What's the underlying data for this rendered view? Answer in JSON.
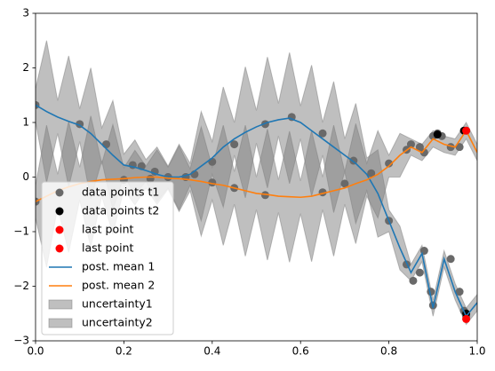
{
  "chart_data": {
    "type": "line",
    "xlim": [
      0,
      1
    ],
    "ylim": [
      -3,
      3
    ],
    "xticks": [
      {
        "value": 0,
        "label": "0.0"
      },
      0.2,
      0.4,
      0.6,
      0.8,
      {
        "value": 1,
        "label": "1.0"
      }
    ],
    "yticks": [
      {
        "value": -3,
        "label": "−3"
      },
      {
        "value": -2,
        "label": "−2"
      },
      {
        "value": -1,
        "label": "−1"
      },
      0,
      1,
      2,
      3
    ],
    "legend": "lower left",
    "series": [
      {
        "name": "data points t1",
        "type": "scatter",
        "color": "#696969",
        "x": [
          0,
          0.1,
          0.16,
          0.22,
          0.24,
          0.27,
          0.3,
          0.34,
          0.36,
          0.4,
          0.45,
          0.52,
          0.58,
          0.65,
          0.72,
          0.76,
          0.8,
          0.84,
          0.855,
          0.87,
          0.88,
          0.895,
          0.9,
          0.94,
          0.96,
          0.97,
          0.975,
          0,
          0.2,
          0.26,
          0.3,
          0.34,
          0.4,
          0.45,
          0.52,
          0.65,
          0.7,
          0.8,
          0.84,
          0.85,
          0.87,
          0.88,
          0.9,
          0.91,
          0.92,
          0.94,
          0.96,
          0.975
        ],
        "values": [
          1.32,
          0.97,
          0.6,
          0.22,
          0.2,
          0.1,
          0.0,
          0.0,
          0.05,
          0.28,
          0.6,
          0.97,
          1.1,
          0.8,
          0.3,
          0.07,
          -0.8,
          -1.6,
          -1.9,
          -1.75,
          -1.35,
          -2.1,
          -2.35,
          -1.5,
          -2.1,
          -2.45,
          -2.55,
          -0.45,
          -0.05,
          -0.03,
          0.0,
          0.0,
          -0.1,
          -0.2,
          -0.33,
          -0.28,
          -0.12,
          0.25,
          0.5,
          0.6,
          0.55,
          0.45,
          0.75,
          0.8,
          0.75,
          0.55,
          0.55,
          0.85
        ]
      },
      {
        "name": "data points t2",
        "type": "scatter",
        "color": "#000000",
        "x": [
          0.91,
          0.97,
          0.975
        ],
        "values": [
          0.78,
          0.85,
          -2.5
        ]
      },
      {
        "name": "last point",
        "type": "scatter",
        "color": "#ff0000",
        "x": [
          0.975
        ],
        "values": [
          0.85
        ]
      },
      {
        "name": "last point",
        "type": "scatter",
        "color": "#ff0000",
        "x": [
          0.975
        ],
        "values": [
          -2.6
        ]
      },
      {
        "name": "post. mean 1",
        "type": "line",
        "color": "#1f77b4",
        "x": [
          0,
          0.025,
          0.05,
          0.075,
          0.1,
          0.125,
          0.15,
          0.175,
          0.2,
          0.225,
          0.25,
          0.275,
          0.3,
          0.325,
          0.35,
          0.375,
          0.4,
          0.425,
          0.45,
          0.475,
          0.5,
          0.525,
          0.55,
          0.575,
          0.6,
          0.625,
          0.65,
          0.675,
          0.7,
          0.725,
          0.75,
          0.775,
          0.8,
          0.825,
          0.85,
          0.875,
          0.9,
          0.925,
          0.95,
          0.975,
          1
        ],
        "values": [
          1.32,
          1.2,
          1.1,
          1.02,
          0.95,
          0.8,
          0.6,
          0.4,
          0.22,
          0.18,
          0.12,
          0.05,
          0.0,
          0.0,
          0.05,
          0.2,
          0.35,
          0.55,
          0.7,
          0.82,
          0.92,
          1.0,
          1.05,
          1.08,
          1.0,
          0.85,
          0.7,
          0.55,
          0.4,
          0.25,
          0.05,
          -0.3,
          -0.8,
          -1.3,
          -1.75,
          -1.4,
          -2.4,
          -1.5,
          -2.1,
          -2.55,
          -2.3
        ]
      },
      {
        "name": "post. mean 2",
        "type": "line",
        "color": "#ff7f0e",
        "x": [
          0,
          0.025,
          0.05,
          0.075,
          0.1,
          0.125,
          0.15,
          0.175,
          0.2,
          0.225,
          0.25,
          0.275,
          0.3,
          0.325,
          0.35,
          0.375,
          0.4,
          0.425,
          0.45,
          0.475,
          0.5,
          0.525,
          0.55,
          0.575,
          0.6,
          0.625,
          0.65,
          0.675,
          0.7,
          0.725,
          0.75,
          0.775,
          0.8,
          0.825,
          0.85,
          0.875,
          0.9,
          0.925,
          0.95,
          0.975,
          1
        ],
        "values": [
          -0.45,
          -0.35,
          -0.25,
          -0.18,
          -0.12,
          -0.08,
          -0.05,
          -0.04,
          -0.03,
          -0.01,
          0.0,
          0.0,
          -0.02,
          -0.03,
          -0.05,
          -0.08,
          -0.12,
          -0.15,
          -0.2,
          -0.25,
          -0.3,
          -0.32,
          -0.35,
          -0.36,
          -0.37,
          -0.35,
          -0.3,
          -0.25,
          -0.2,
          -0.12,
          -0.05,
          0.05,
          0.2,
          0.4,
          0.55,
          0.45,
          0.7,
          0.6,
          0.55,
          0.85,
          0.45
        ]
      },
      {
        "name": "uncertainty1",
        "type": "band",
        "color": "#808080",
        "alpha": 0.5,
        "x": [
          0,
          0.025,
          0.05,
          0.075,
          0.1,
          0.125,
          0.15,
          0.175,
          0.2,
          0.225,
          0.25,
          0.275,
          0.3,
          0.325,
          0.35,
          0.375,
          0.4,
          0.425,
          0.45,
          0.475,
          0.5,
          0.525,
          0.55,
          0.575,
          0.6,
          0.625,
          0.65,
          0.675,
          0.7,
          0.725,
          0.75,
          0.775,
          0.8,
          0.825,
          0.85,
          0.875,
          0.9,
          0.925,
          0.95,
          0.975,
          1
        ],
        "upper": [
          1.62,
          2.5,
          1.4,
          2.22,
          1.25,
          2.0,
          0.9,
          1.4,
          0.42,
          0.68,
          0.32,
          0.55,
          0.2,
          0.6,
          0.25,
          1.2,
          0.65,
          1.65,
          1.0,
          2.02,
          1.22,
          2.2,
          1.35,
          2.28,
          1.3,
          2.05,
          1.0,
          1.75,
          0.7,
          1.35,
          0.35,
          0.5,
          -0.6,
          -0.9,
          -1.6,
          -1.25,
          -2.25,
          -1.35,
          -1.95,
          -2.4,
          -2.15
        ],
        "lower": [
          1.02,
          -0.1,
          0.8,
          -0.18,
          0.65,
          -0.4,
          0.3,
          -0.6,
          0.02,
          -0.32,
          -0.08,
          -0.45,
          -0.2,
          -0.6,
          -0.15,
          -0.8,
          0.05,
          -0.55,
          0.4,
          -0.38,
          0.62,
          -0.2,
          0.75,
          -0.12,
          0.7,
          -0.35,
          0.4,
          -0.65,
          0.1,
          -0.85,
          -0.25,
          -1.1,
          -1.0,
          -1.7,
          -1.9,
          -1.55,
          -2.55,
          -1.65,
          -2.25,
          -2.7,
          -2.45
        ]
      },
      {
        "name": "uncertainty2",
        "type": "band",
        "color": "#808080",
        "alpha": 0.5,
        "x": [
          0,
          0.025,
          0.05,
          0.075,
          0.1,
          0.125,
          0.15,
          0.175,
          0.2,
          0.225,
          0.25,
          0.275,
          0.3,
          0.325,
          0.35,
          0.375,
          0.4,
          0.425,
          0.45,
          0.475,
          0.5,
          0.525,
          0.55,
          0.575,
          0.6,
          0.625,
          0.65,
          0.675,
          0.7,
          0.725,
          0.75,
          0.775,
          0.8,
          0.825,
          0.85,
          0.875,
          0.9,
          0.925,
          0.95,
          0.975,
          1
        ],
        "upper": [
          -0.15,
          0.95,
          0.05,
          1.02,
          0.18,
          1.12,
          0.25,
          0.96,
          0.17,
          0.49,
          0.2,
          0.5,
          0.18,
          0.57,
          0.15,
          0.92,
          0.18,
          0.95,
          0.1,
          0.95,
          0,
          0.88,
          -0.05,
          0.84,
          -0.07,
          0.85,
          0,
          0.95,
          0.1,
          0.98,
          0.25,
          0.85,
          0.4,
          0.8,
          0.7,
          0.6,
          0.85,
          0.75,
          0.7,
          1.0,
          0.6
        ],
        "lower": [
          -0.75,
          -1.65,
          -0.55,
          -1.38,
          -0.42,
          -1.28,
          -0.35,
          -1.04,
          -0.23,
          -0.51,
          -0.2,
          -0.5,
          -0.22,
          -0.63,
          -0.25,
          -1.08,
          -0.42,
          -1.25,
          -0.5,
          -1.45,
          -0.6,
          -1.52,
          -0.65,
          -1.56,
          -0.67,
          -1.55,
          -0.6,
          -1.45,
          -0.5,
          -1.22,
          -0.35,
          -0.75,
          0,
          0,
          0.4,
          0.3,
          0.55,
          0.45,
          0.4,
          0.7,
          0.3
        ]
      }
    ]
  }
}
